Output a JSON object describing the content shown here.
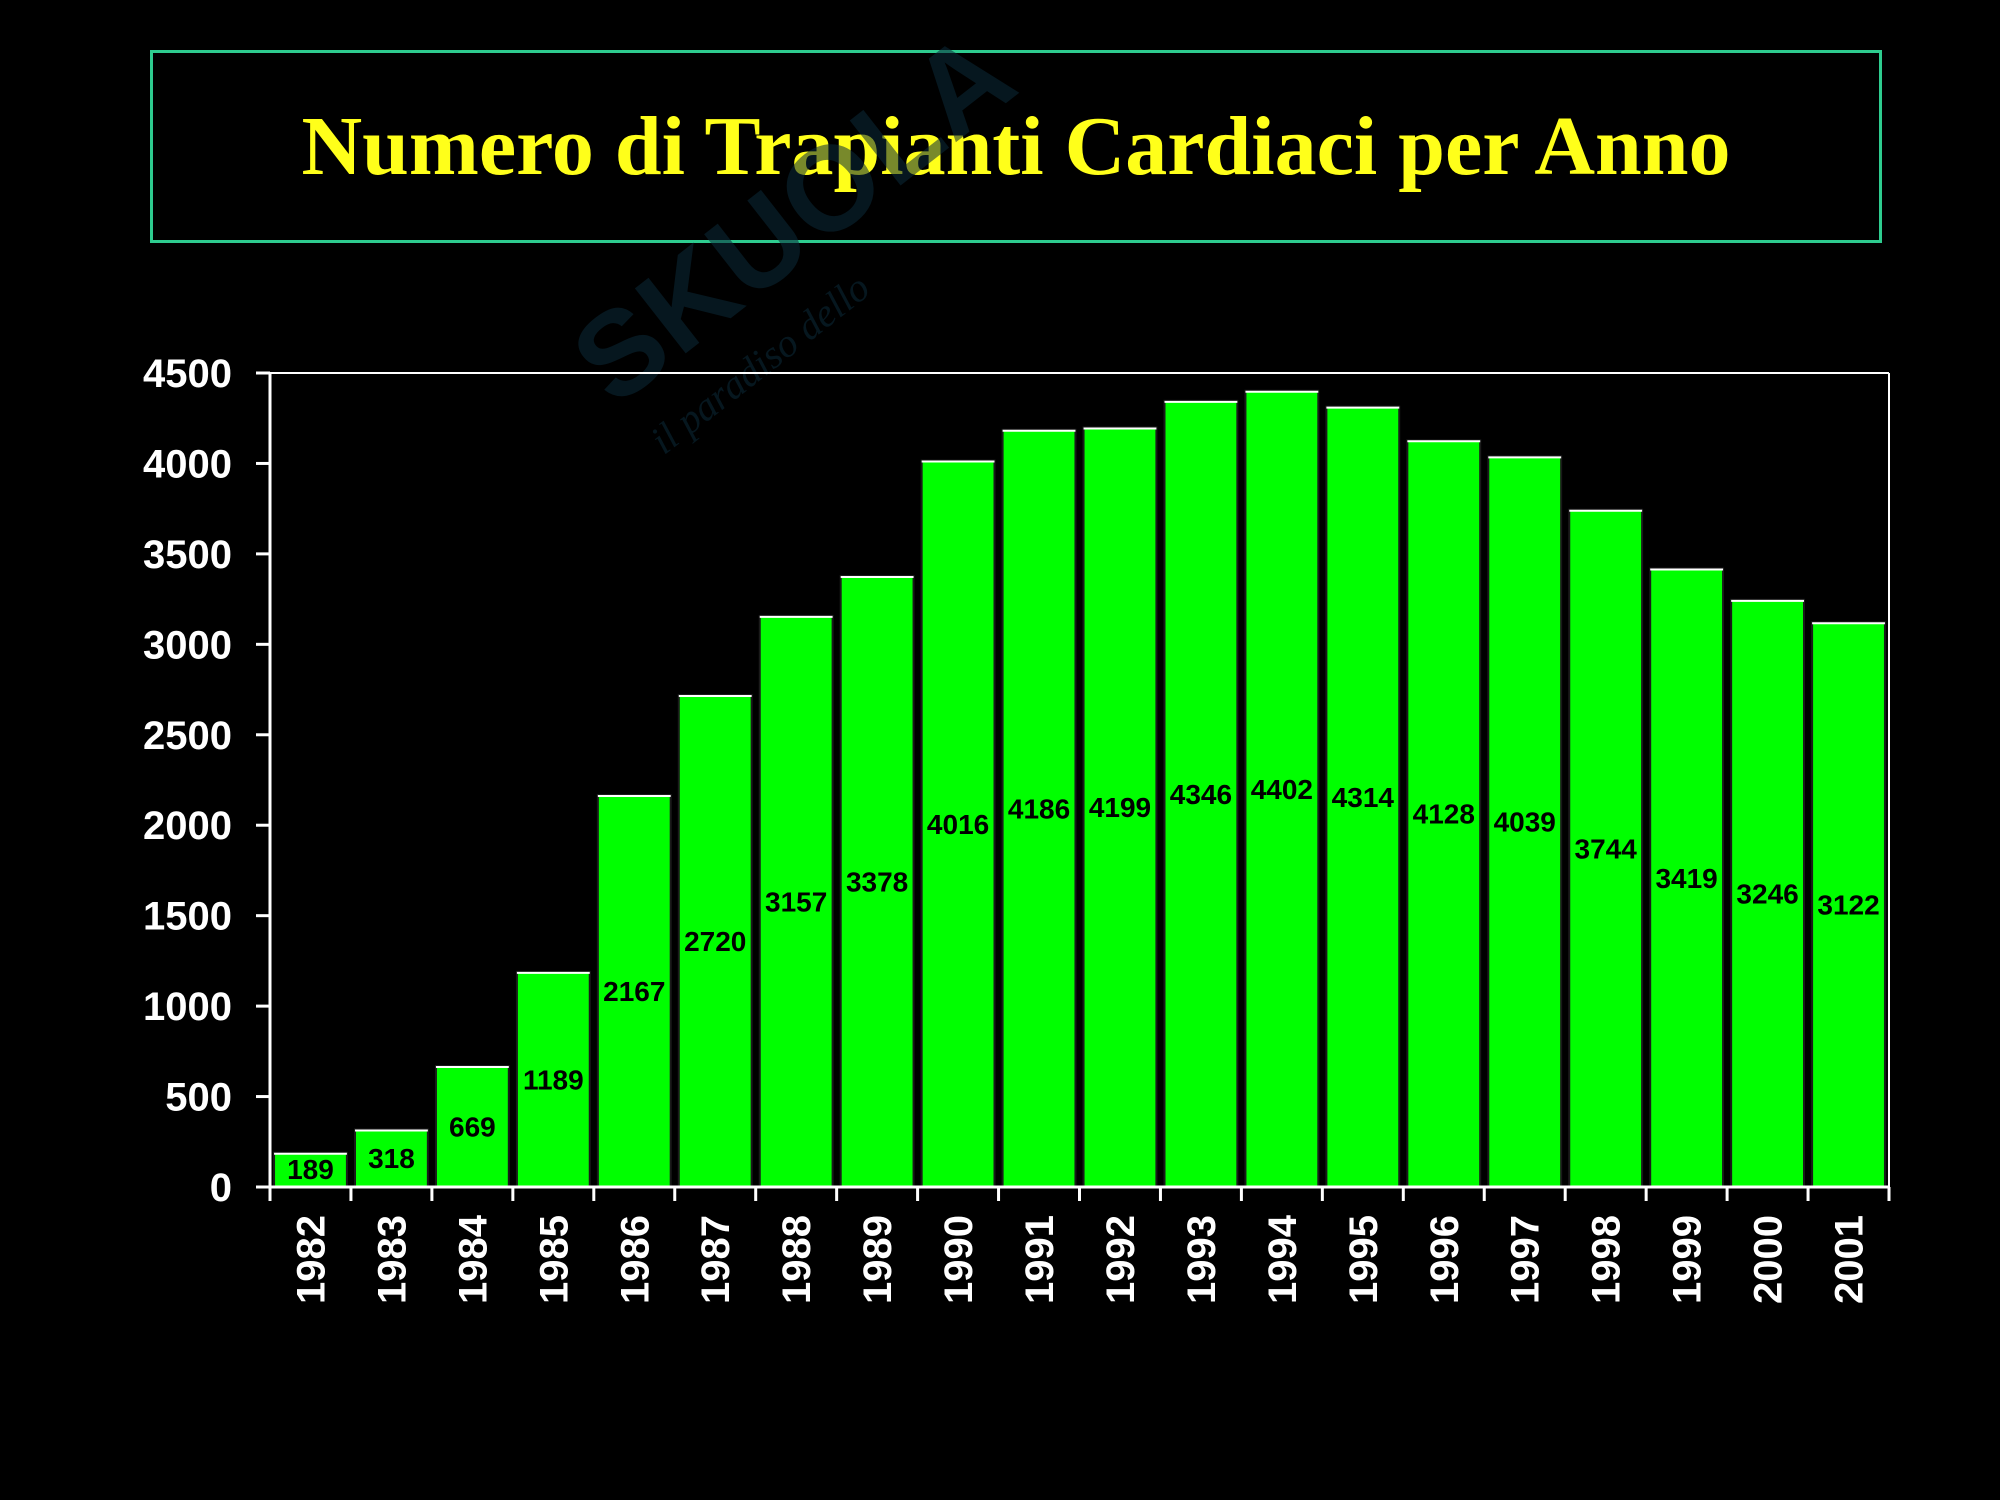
{
  "title": "Numero di Trapianti Cardiaci per Anno",
  "watermark": {
    "brand": "SKUOLA.net",
    "tagline": "il paradiso dello studente"
  },
  "colors": {
    "bar": "#00ff00",
    "title": "#ffff1a",
    "background": "#000000",
    "border": "#2ecc8f"
  },
  "chart_data": {
    "type": "bar",
    "title": "Numero di Trapianti Cardiaci per Anno",
    "xlabel": "",
    "ylabel": "",
    "categories": [
      "1982",
      "1983",
      "1984",
      "1985",
      "1986",
      "1987",
      "1988",
      "1989",
      "1990",
      "1991",
      "1992",
      "1993",
      "1994",
      "1995",
      "1996",
      "1997",
      "1998",
      "1999",
      "2000",
      "2001"
    ],
    "values": [
      189,
      318,
      669,
      1189,
      2167,
      2720,
      3157,
      3378,
      4016,
      4186,
      4199,
      4346,
      4402,
      4314,
      4128,
      4039,
      3744,
      3419,
      3246,
      3122
    ],
    "ylim": [
      0,
      4500
    ],
    "yticks": [
      0,
      500,
      1000,
      1500,
      2000,
      2500,
      3000,
      3500,
      4000,
      4500
    ],
    "grid": false,
    "legend": "none"
  }
}
